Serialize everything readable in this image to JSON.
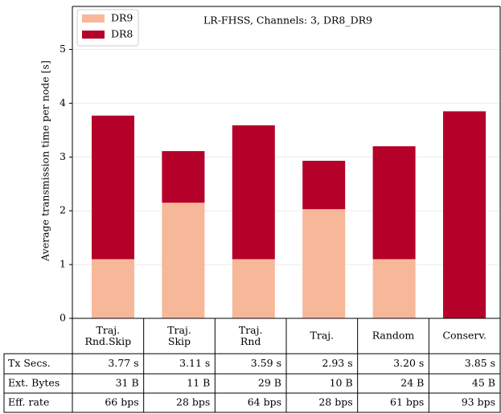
{
  "chart_data": {
    "type": "stacked_bar",
    "title": "LR-FHSS, Channels: 3, DR8_DR9",
    "y_label": "Average transmission time per node [s]",
    "categories": [
      "Traj.\nRnd.Skip",
      "Traj.\nSkip",
      "Traj.\nRnd",
      "Traj.",
      "Random",
      "Conserv."
    ],
    "series": [
      {
        "name": "DR9",
        "color": "#f7b799",
        "values": [
          1.1,
          2.15,
          1.1,
          2.03,
          1.1,
          0
        ]
      },
      {
        "name": "DR8",
        "color": "#b5002a",
        "values": [
          2.67,
          0.96,
          2.49,
          0.9,
          2.1,
          3.85
        ]
      }
    ],
    "ylim": [
      0,
      5.8
    ],
    "yticks": [
      0,
      1,
      2,
      3,
      4,
      5
    ],
    "grid": true,
    "legend": "upper left",
    "table": {
      "row_labels": [
        "Tx Secs.",
        "Ext. Bytes",
        "Eff. rate"
      ],
      "rows": [
        [
          "3.77 s",
          "3.11 s",
          "3.59 s",
          "2.93 s",
          "3.20 s",
          "3.85 s"
        ],
        [
          "31 B",
          "11 B",
          "29 B",
          "10 B",
          "24 B",
          "45 B"
        ],
        [
          "66 bps",
          "28 bps",
          "64 bps",
          "28 bps",
          "61 bps",
          "93 bps"
        ]
      ]
    }
  }
}
